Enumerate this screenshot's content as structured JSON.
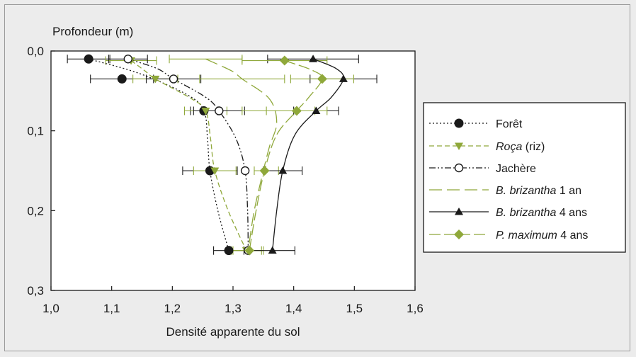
{
  "chart_data": {
    "type": "line",
    "orientation": "depth-profile",
    "ylabel": "Profondeur (m)",
    "xlabel": "Densité apparente du sol",
    "xlim": [
      1.0,
      1.6
    ],
    "ylim": [
      0.0,
      0.3
    ],
    "y_reversed": true,
    "xticks": [
      "1,0",
      "1,1",
      "1,2",
      "1,3",
      "1,4",
      "1,5",
      "1,6"
    ],
    "yticks": [
      "0,0",
      "0,1",
      "0,2",
      "0,3"
    ],
    "grid": false,
    "legend_position": "right",
    "series": [
      {
        "key": "foret",
        "legend": [
          {
            "text": "Forêt",
            "italic": false
          }
        ],
        "color": "#1a1a1a",
        "dash": "2,3",
        "marker": "circle-filled",
        "depth": [
          0.01,
          0.035,
          0.075,
          0.15,
          0.25
        ],
        "density": [
          1.062,
          1.117,
          1.252,
          1.262,
          1.293
        ],
        "err": [
          0.035,
          0.052,
          0.022,
          0.045,
          0.025
        ],
        "curve": [
          [
            1.062,
            0.01
          ],
          [
            1.145,
            0.028
          ],
          [
            1.225,
            0.055
          ],
          [
            1.252,
            0.075
          ],
          [
            1.258,
            0.11
          ],
          [
            1.262,
            0.15
          ],
          [
            1.275,
            0.2
          ],
          [
            1.293,
            0.25
          ]
        ]
      },
      {
        "key": "roca",
        "legend": [
          {
            "text": "Roça",
            "italic": true
          },
          {
            "text": " (riz)",
            "italic": false
          }
        ],
        "color": "#8fa83a",
        "dash": "7,4",
        "marker": "triangle-down",
        "depth": [
          0.012,
          0.035,
          0.075,
          0.15,
          0.25
        ],
        "density": [
          1.132,
          1.172,
          1.255,
          1.27,
          1.322
        ],
        "err": [
          0.042,
          0.037,
          0.035,
          0.035,
          0.025
        ],
        "curve": [
          [
            1.132,
            0.012
          ],
          [
            1.155,
            0.025
          ],
          [
            1.172,
            0.035
          ],
          [
            1.232,
            0.06
          ],
          [
            1.255,
            0.075
          ],
          [
            1.263,
            0.11
          ],
          [
            1.27,
            0.15
          ],
          [
            1.292,
            0.2
          ],
          [
            1.322,
            0.25
          ]
        ]
      },
      {
        "key": "jachere",
        "legend": [
          {
            "text": "Jachère",
            "italic": false
          }
        ],
        "color": "#1a1a1a",
        "dash": "9,3,2,3,2,3",
        "marker": "circle-open",
        "depth": [
          0.01,
          0.035,
          0.075,
          0.15,
          0.25
        ],
        "density": [
          1.127,
          1.202,
          1.277,
          1.32,
          1.325
        ],
        "err": [
          0.032,
          0.045,
          0.042,
          0.0,
          0.0
        ],
        "curve": [
          [
            1.127,
            0.01
          ],
          [
            1.175,
            0.022
          ],
          [
            1.202,
            0.035
          ],
          [
            1.255,
            0.058
          ],
          [
            1.277,
            0.075
          ],
          [
            1.305,
            0.11
          ],
          [
            1.32,
            0.15
          ],
          [
            1.324,
            0.2
          ],
          [
            1.325,
            0.25
          ]
        ]
      },
      {
        "key": "bb1",
        "legend": [
          {
            "text": "B. brizantha",
            "italic": true
          },
          {
            "text": " 1 an",
            "italic": false
          }
        ],
        "color": "#8fa83a",
        "dash": "18,7",
        "marker": "none",
        "depth": [
          0.01,
          0.035,
          0.075,
          0.15,
          0.25
        ],
        "density": [
          1.255,
          1.315,
          1.375,
          1.355,
          1.325
        ],
        "err": [
          0.06,
          0.07,
          0.06,
          0.02,
          0.025
        ],
        "curve": [
          [
            1.255,
            0.01
          ],
          [
            1.298,
            0.025
          ],
          [
            1.315,
            0.035
          ],
          [
            1.36,
            0.06
          ],
          [
            1.372,
            0.09
          ],
          [
            1.36,
            0.12
          ],
          [
            1.35,
            0.15
          ],
          [
            1.335,
            0.2
          ],
          [
            1.325,
            0.25
          ]
        ]
      },
      {
        "key": "bb4",
        "legend": [
          {
            "text": "B. brizantha",
            "italic": true
          },
          {
            "text": " 4 ans",
            "italic": false
          }
        ],
        "color": "#1a1a1a",
        "dash": "",
        "marker": "triangle-up",
        "depth": [
          0.01,
          0.035,
          0.075,
          0.15,
          0.25
        ],
        "density": [
          1.432,
          1.482,
          1.437,
          1.382,
          1.365
        ],
        "err": [
          0.075,
          0.055,
          0.037,
          0.032,
          0.037
        ],
        "curve": [
          [
            1.432,
            0.01
          ],
          [
            1.47,
            0.022
          ],
          [
            1.482,
            0.035
          ],
          [
            1.462,
            0.058
          ],
          [
            1.437,
            0.075
          ],
          [
            1.402,
            0.105
          ],
          [
            1.382,
            0.15
          ],
          [
            1.372,
            0.2
          ],
          [
            1.365,
            0.25
          ]
        ]
      },
      {
        "key": "pmax",
        "legend": [
          {
            "text": "P. maximum",
            "italic": true
          },
          {
            "text": " 4 ans",
            "italic": false
          }
        ],
        "color": "#8fa83a",
        "dash": "16,5",
        "marker": "diamond",
        "depth": [
          0.012,
          0.035,
          0.075,
          0.15,
          0.25
        ],
        "density": [
          1.385,
          1.447,
          1.405,
          1.352,
          1.327
        ],
        "err": [
          0.07,
          0.052,
          0.05,
          0.0,
          0.0
        ],
        "curve": [
          [
            1.385,
            0.012
          ],
          [
            1.43,
            0.024
          ],
          [
            1.447,
            0.035
          ],
          [
            1.425,
            0.058
          ],
          [
            1.405,
            0.075
          ],
          [
            1.372,
            0.105
          ],
          [
            1.352,
            0.15
          ],
          [
            1.338,
            0.2
          ],
          [
            1.327,
            0.25
          ]
        ]
      }
    ]
  }
}
